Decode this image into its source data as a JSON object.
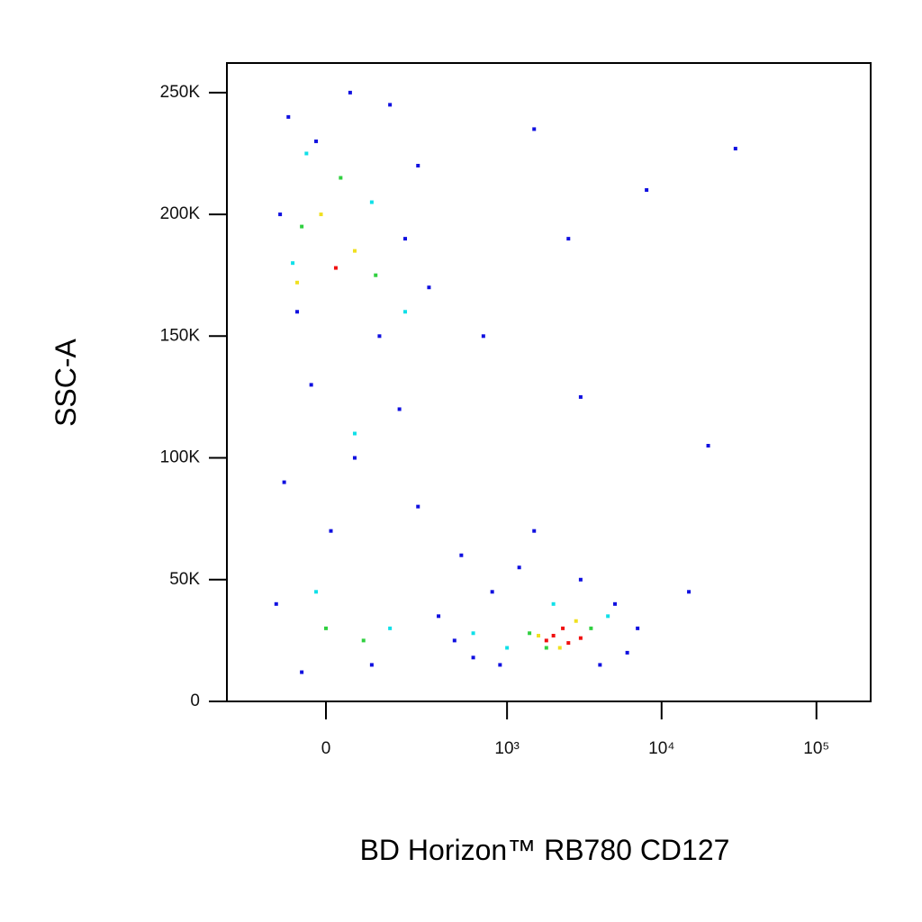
{
  "chart_data": {
    "type": "scatter",
    "x_label": "BD Horizon™ RB780  CD127",
    "y_label": "SSC-A",
    "xscale": "biexponential",
    "xlim": [
      -281,
      224000
    ],
    "ylim": [
      0,
      262144
    ],
    "xticks": [
      0,
      {
        "value": 1000,
        "label": "10³"
      },
      {
        "value": 10000,
        "label": "10⁴"
      },
      {
        "value": 100000,
        "label": "10⁵"
      }
    ],
    "yticks": [
      0,
      {
        "value": 50000,
        "label": "50K"
      },
      {
        "value": 100000,
        "label": "100K"
      },
      {
        "value": 150000,
        "label": "150K"
      },
      {
        "value": 200000,
        "label": "200K"
      },
      {
        "value": 250000,
        "label": "250K"
      }
    ],
    "series": [
      {
        "color": "#1010e0",
        "x": [
          -80,
          -20,
          50,
          150,
          250,
          -100,
          200,
          300,
          -60,
          120,
          -30,
          180,
          60,
          -90,
          250,
          10,
          -110,
          350,
          100,
          -50,
          450,
          600,
          800,
          1200,
          3000,
          5000,
          7000,
          6000,
          4000,
          900,
          500,
          1500,
          15000,
          30000,
          20000,
          2500,
          1500,
          700,
          8000,
          3000
        ],
        "y": [
          240000,
          230000,
          250000,
          245000,
          220000,
          200000,
          190000,
          170000,
          160000,
          150000,
          130000,
          120000,
          100000,
          90000,
          80000,
          70000,
          40000,
          35000,
          15000,
          12000,
          25000,
          18000,
          45000,
          55000,
          50000,
          40000,
          30000,
          20000,
          15000,
          15000,
          60000,
          70000,
          45000,
          227000,
          105000,
          190000,
          235000,
          150000,
          210000,
          125000
        ]
      },
      {
        "color": "#10e0e8",
        "x": [
          -40,
          100,
          -70,
          200,
          60,
          -20,
          150,
          1000,
          4500,
          2000,
          600
        ],
        "y": [
          225000,
          205000,
          180000,
          160000,
          110000,
          45000,
          30000,
          22000,
          35000,
          40000,
          28000
        ]
      },
      {
        "color": "#30d040",
        "x": [
          30,
          -50,
          110,
          0,
          80,
          1400,
          3500,
          1800
        ],
        "y": [
          215000,
          195000,
          175000,
          30000,
          25000,
          28000,
          30000,
          22000
        ]
      },
      {
        "color": "#f0e020",
        "x": [
          -10,
          60,
          -60,
          1600,
          2800,
          2200
        ],
        "y": [
          200000,
          185000,
          172000,
          27000,
          33000,
          22000
        ]
      },
      {
        "color": "#f01010",
        "x": [
          20,
          2000,
          2500,
          2300,
          3000,
          1800
        ],
        "y": [
          178000,
          27000,
          24000,
          30000,
          26000,
          25000
        ]
      }
    ]
  }
}
